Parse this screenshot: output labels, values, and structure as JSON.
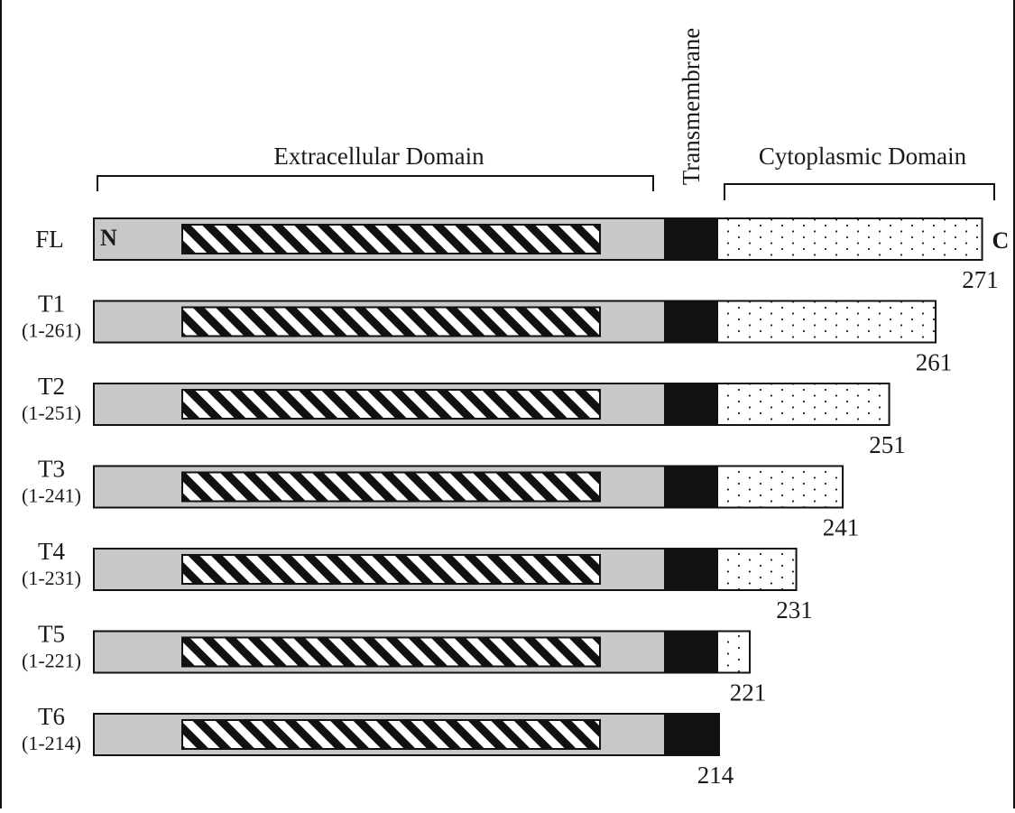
{
  "header": {
    "extracellular_label": "Extracellular Domain",
    "transmembrane_label": "Transmembrane",
    "cytoplasmic_label": "Cytoplasmic Domain"
  },
  "terminal_labels": {
    "n": "N",
    "c": "C"
  },
  "colors": {
    "extracellular": "#c8c8c8",
    "transmembrane": "#111111",
    "cytoplasmic": "#ffffff",
    "outline": "#111111"
  },
  "constructs": [
    {
      "name": "FL",
      "range": "",
      "end_label": "271",
      "end_residue": 271
    },
    {
      "name": "T1",
      "range": "(1-261)",
      "end_label": "261",
      "end_residue": 261
    },
    {
      "name": "T2",
      "range": "(1-251)",
      "end_label": "251",
      "end_residue": 251
    },
    {
      "name": "T3",
      "range": "(1-241)",
      "end_label": "241",
      "end_residue": 241
    },
    {
      "name": "T4",
      "range": "(1-231)",
      "end_label": "231",
      "end_residue": 231
    },
    {
      "name": "T5",
      "range": "(1-221)",
      "end_label": "221",
      "end_residue": 221
    },
    {
      "name": "T6",
      "range": "(1-214)",
      "end_label": "214",
      "end_residue": 214
    }
  ]
}
